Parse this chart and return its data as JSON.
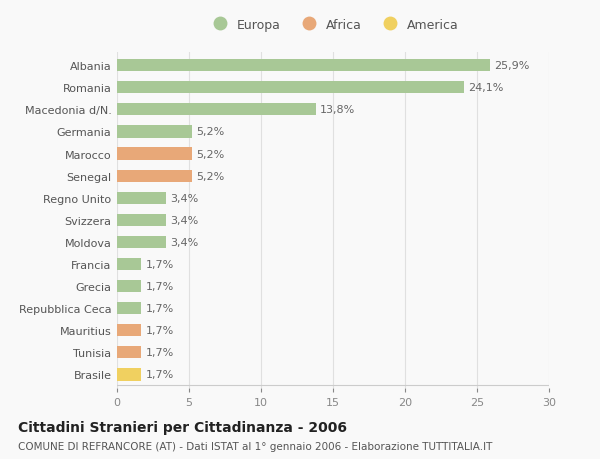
{
  "categories": [
    "Albania",
    "Romania",
    "Macedonia d/N.",
    "Germania",
    "Marocco",
    "Senegal",
    "Regno Unito",
    "Svizzera",
    "Moldova",
    "Francia",
    "Grecia",
    "Repubblica Ceca",
    "Mauritius",
    "Tunisia",
    "Brasile"
  ],
  "values": [
    25.9,
    24.1,
    13.8,
    5.2,
    5.2,
    5.2,
    3.4,
    3.4,
    3.4,
    1.7,
    1.7,
    1.7,
    1.7,
    1.7,
    1.7
  ],
  "continents": [
    "Europa",
    "Europa",
    "Europa",
    "Europa",
    "Africa",
    "Africa",
    "Europa",
    "Europa",
    "Europa",
    "Europa",
    "Europa",
    "Europa",
    "Africa",
    "Africa",
    "America"
  ],
  "labels": [
    "25,9%",
    "24,1%",
    "13,8%",
    "5,2%",
    "5,2%",
    "5,2%",
    "3,4%",
    "3,4%",
    "3,4%",
    "1,7%",
    "1,7%",
    "1,7%",
    "1,7%",
    "1,7%",
    "1,7%"
  ],
  "colors": {
    "Europa": "#a8c896",
    "Africa": "#e8a878",
    "America": "#f0d060"
  },
  "xlim": [
    0,
    30
  ],
  "xticks": [
    0,
    5,
    10,
    15,
    20,
    25,
    30
  ],
  "title": "Cittadini Stranieri per Cittadinanza - 2006",
  "subtitle": "COMUNE DI REFRANCORE (AT) - Dati ISTAT al 1° gennaio 2006 - Elaborazione TUTTITALIA.IT",
  "background_color": "#f9f9f9",
  "grid_color": "#e0e0e0",
  "bar_height": 0.55,
  "label_fontsize": 8,
  "tick_fontsize": 8,
  "title_fontsize": 10,
  "subtitle_fontsize": 7.5,
  "legend_fontsize": 9
}
